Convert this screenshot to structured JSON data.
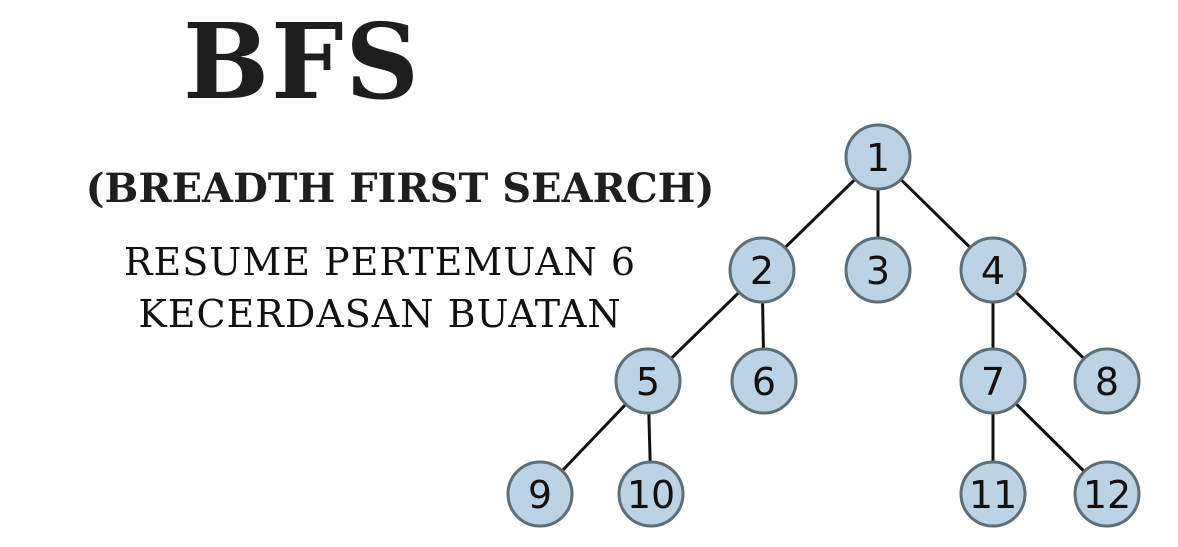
{
  "header": {
    "title": "BFS",
    "subtitle": "(BREADTH FIRST SEARCH)",
    "line1": "RESUME PERTEMUAN 6",
    "line2": "KECERDASAN BUATAN"
  },
  "tree": {
    "node_fill": "#bcd3e6",
    "node_stroke": "#5c6e78",
    "edge_color": "#111111",
    "nodes": [
      {
        "id": "1",
        "label": "1"
      },
      {
        "id": "2",
        "label": "2"
      },
      {
        "id": "3",
        "label": "3"
      },
      {
        "id": "4",
        "label": "4"
      },
      {
        "id": "5",
        "label": "5"
      },
      {
        "id": "6",
        "label": "6"
      },
      {
        "id": "7",
        "label": "7"
      },
      {
        "id": "8",
        "label": "8"
      },
      {
        "id": "9",
        "label": "9"
      },
      {
        "id": "10",
        "label": "10"
      },
      {
        "id": "11",
        "label": "11"
      },
      {
        "id": "12",
        "label": "12"
      }
    ],
    "edges": [
      [
        "1",
        "2"
      ],
      [
        "1",
        "3"
      ],
      [
        "1",
        "4"
      ],
      [
        "2",
        "5"
      ],
      [
        "2",
        "6"
      ],
      [
        "4",
        "7"
      ],
      [
        "4",
        "8"
      ],
      [
        "5",
        "9"
      ],
      [
        "5",
        "10"
      ],
      [
        "7",
        "11"
      ],
      [
        "7",
        "12"
      ]
    ]
  }
}
